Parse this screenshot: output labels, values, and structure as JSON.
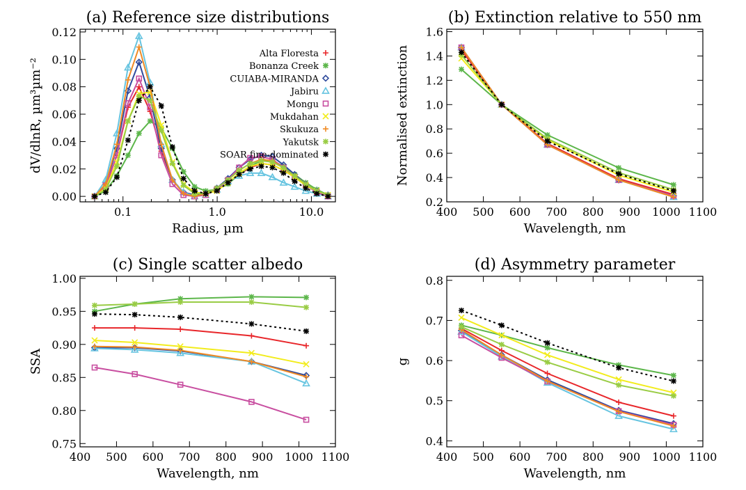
{
  "colors": {
    "Alta Floresta": "#e8262a",
    "Bonanza Creek": "#5cb64a",
    "CUIABA-MIRANDA": "#2f4a9c",
    "Jabiru": "#66c4e0",
    "Mongu": "#c84ea0",
    "Mukdahan": "#f2ec1c",
    "Skukuza": "#f08a24",
    "Yakutsk": "#99cc44",
    "SOAR fine-dominated": "#000000"
  },
  "markers": {
    "Alta Floresta": "plus",
    "Bonanza Creek": "asterisk",
    "CUIABA-MIRANDA": "diamond",
    "Jabiru": "triangle",
    "Mongu": "square",
    "Mukdahan": "x",
    "Skukuza": "plus",
    "Yakutsk": "asterisk",
    "SOAR fine-dominated": "asterisk"
  },
  "chart_data": [
    {
      "type": "line",
      "title": "(a) Reference size distributions",
      "xlabel": "Radius, µm",
      "ylabel": "dV/dlnR, µm³µm⁻²",
      "xscale": "log",
      "xlim": [
        0.035,
        18
      ],
      "ylim": [
        -0.004,
        0.122
      ],
      "xticks": [
        0.1,
        1.0,
        10.0
      ],
      "xtick_labels": [
        "0.1",
        "1.0",
        "10.0"
      ],
      "yticks": [
        0,
        0.02,
        0.04,
        0.06,
        0.08,
        0.1,
        0.12
      ],
      "ytick_labels": [
        "0.00",
        "0.02",
        "0.04",
        "0.06",
        "0.08",
        "0.10",
        "0.12"
      ],
      "legend_position": "top-right",
      "x": [
        0.05,
        0.0656,
        0.0861,
        0.113,
        0.148,
        0.194,
        0.255,
        0.335,
        0.439,
        0.576,
        0.756,
        0.992,
        1.302,
        1.708,
        2.241,
        2.94,
        3.858,
        5.062,
        6.641,
        8.713,
        11.43,
        15.0
      ],
      "series": [
        {
          "name": "Alta Floresta",
          "values": [
            0.0,
            0.007,
            0.03,
            0.065,
            0.08,
            0.062,
            0.033,
            0.012,
            0.003,
            0.001,
            0.002,
            0.005,
            0.01,
            0.016,
            0.021,
            0.024,
            0.023,
            0.019,
            0.014,
            0.009,
            0.004,
            0.001
          ]
        },
        {
          "name": "Bonanza Creek",
          "values": [
            0.0,
            0.004,
            0.015,
            0.03,
            0.046,
            0.055,
            0.05,
            0.035,
            0.018,
            0.007,
            0.004,
            0.005,
            0.009,
            0.016,
            0.022,
            0.026,
            0.026,
            0.022,
            0.016,
            0.01,
            0.005,
            0.001
          ]
        },
        {
          "name": "CUIABA-MIRANDA",
          "values": [
            0.0,
            0.009,
            0.035,
            0.077,
            0.098,
            0.072,
            0.035,
            0.012,
            0.003,
            0.001,
            0.002,
            0.006,
            0.013,
            0.021,
            0.027,
            0.03,
            0.029,
            0.023,
            0.016,
            0.009,
            0.004,
            0.001
          ]
        },
        {
          "name": "Jabiru",
          "values": [
            0.0,
            0.012,
            0.046,
            0.094,
            0.117,
            0.083,
            0.038,
            0.012,
            0.003,
            0.0,
            0.001,
            0.005,
            0.011,
            0.015,
            0.017,
            0.017,
            0.014,
            0.01,
            0.007,
            0.004,
            0.002,
            0.0
          ]
        },
        {
          "name": "Mongu",
          "values": [
            0.0,
            0.008,
            0.03,
            0.068,
            0.086,
            0.065,
            0.03,
            0.009,
            0.001,
            0.0,
            0.001,
            0.005,
            0.012,
            0.021,
            0.028,
            0.029,
            0.027,
            0.021,
            0.014,
            0.008,
            0.003,
            0.0
          ]
        },
        {
          "name": "Mukdahan",
          "values": [
            0.0,
            0.006,
            0.025,
            0.055,
            0.075,
            0.076,
            0.052,
            0.025,
            0.009,
            0.003,
            0.002,
            0.004,
            0.01,
            0.017,
            0.022,
            0.024,
            0.023,
            0.019,
            0.014,
            0.008,
            0.004,
            0.001
          ]
        },
        {
          "name": "Skukuza",
          "values": [
            0.0,
            0.009,
            0.038,
            0.085,
            0.109,
            0.08,
            0.038,
            0.012,
            0.002,
            0.0,
            0.002,
            0.006,
            0.012,
            0.019,
            0.024,
            0.027,
            0.026,
            0.021,
            0.015,
            0.009,
            0.004,
            0.001
          ]
        },
        {
          "name": "Yakutsk",
          "values": [
            0.0,
            0.005,
            0.022,
            0.055,
            0.073,
            0.07,
            0.048,
            0.024,
            0.008,
            0.002,
            0.002,
            0.006,
            0.012,
            0.019,
            0.024,
            0.026,
            0.025,
            0.021,
            0.015,
            0.009,
            0.004,
            0.001
          ]
        },
        {
          "name": "SOAR fine-dominated",
          "values": [
            0.0,
            0.003,
            0.014,
            0.041,
            0.07,
            0.08,
            0.066,
            0.036,
            0.013,
            0.004,
            0.002,
            0.004,
            0.01,
            0.016,
            0.02,
            0.022,
            0.021,
            0.017,
            0.011,
            0.006,
            0.002,
            0.0
          ]
        }
      ]
    },
    {
      "type": "line",
      "title": "(b) Extinction relative to 550 nm",
      "xlabel": "Wavelength, nm",
      "ylabel": "Normalised extinction",
      "xlim": [
        400,
        1100
      ],
      "ylim": [
        0.2,
        1.62
      ],
      "xticks": [
        400,
        500,
        600,
        700,
        800,
        900,
        1000,
        1100
      ],
      "xtick_labels": [
        "400",
        "500",
        "600",
        "700",
        "800",
        "900",
        "1000",
        "1100"
      ],
      "yticks": [
        0.2,
        0.4,
        0.6,
        0.8,
        1.0,
        1.2,
        1.4,
        1.6
      ],
      "ytick_labels": [
        "0.2",
        "0.4",
        "0.6",
        "0.8",
        "1.0",
        "1.2",
        "1.4",
        "1.6"
      ],
      "x": [
        440,
        550,
        675,
        870,
        1020
      ],
      "series": [
        {
          "name": "Alta Floresta",
          "values": [
            1.45,
            1.0,
            0.68,
            0.39,
            0.26
          ]
        },
        {
          "name": "Bonanza Creek",
          "values": [
            1.29,
            1.0,
            0.75,
            0.48,
            0.34
          ]
        },
        {
          "name": "CUIABA-MIRANDA",
          "values": [
            1.47,
            1.0,
            0.67,
            0.38,
            0.25
          ]
        },
        {
          "name": "Jabiru",
          "values": [
            1.47,
            1.0,
            0.67,
            0.38,
            0.24
          ]
        },
        {
          "name": "Mongu",
          "values": [
            1.47,
            1.0,
            0.67,
            0.38,
            0.25
          ]
        },
        {
          "name": "Mukdahan",
          "values": [
            1.38,
            1.0,
            0.71,
            0.42,
            0.28
          ]
        },
        {
          "name": "Skukuza",
          "values": [
            1.47,
            1.0,
            0.67,
            0.38,
            0.24
          ]
        },
        {
          "name": "Yakutsk",
          "values": [
            1.41,
            1.0,
            0.72,
            0.44,
            0.3
          ]
        },
        {
          "name": "SOAR fine-dominated",
          "values": [
            1.43,
            1.0,
            0.7,
            0.43,
            0.29
          ]
        }
      ]
    },
    {
      "type": "line",
      "title": "(c) Single scatter albedo",
      "xlabel": "Wavelength, nm",
      "ylabel": "SSA",
      "xlim": [
        400,
        1100
      ],
      "ylim": [
        0.745,
        1.003
      ],
      "xticks": [
        400,
        500,
        600,
        700,
        800,
        900,
        1000,
        1100
      ],
      "xtick_labels": [
        "400",
        "500",
        "600",
        "700",
        "800",
        "900",
        "1000",
        "1100"
      ],
      "yticks": [
        0.75,
        0.8,
        0.85,
        0.9,
        0.95,
        1.0
      ],
      "ytick_labels": [
        "0.75",
        "0.80",
        "0.85",
        "0.90",
        "0.95",
        "1.00"
      ],
      "x": [
        440,
        550,
        675,
        870,
        1020
      ],
      "series": [
        {
          "name": "Alta Floresta",
          "values": [
            0.925,
            0.925,
            0.923,
            0.913,
            0.898
          ]
        },
        {
          "name": "Bonanza Creek",
          "values": [
            0.95,
            0.961,
            0.969,
            0.972,
            0.971
          ]
        },
        {
          "name": "CUIABA-MIRANDA",
          "values": [
            0.895,
            0.895,
            0.89,
            0.874,
            0.853
          ]
        },
        {
          "name": "Jabiru",
          "values": [
            0.894,
            0.892,
            0.887,
            0.874,
            0.841
          ]
        },
        {
          "name": "Mongu",
          "values": [
            0.865,
            0.855,
            0.839,
            0.813,
            0.786
          ]
        },
        {
          "name": "Mukdahan",
          "values": [
            0.906,
            0.903,
            0.897,
            0.887,
            0.87
          ]
        },
        {
          "name": "Skukuza",
          "values": [
            0.897,
            0.896,
            0.891,
            0.874,
            0.851
          ]
        },
        {
          "name": "Yakutsk",
          "values": [
            0.959,
            0.961,
            0.964,
            0.964,
            0.956
          ]
        },
        {
          "name": "SOAR fine-dominated",
          "values": [
            0.946,
            0.945,
            0.941,
            0.931,
            0.92
          ]
        }
      ]
    },
    {
      "type": "line",
      "title": "(d) Asymmetry parameter",
      "xlabel": "Wavelength, nm",
      "ylabel": "g",
      "xlim": [
        400,
        1100
      ],
      "ylim": [
        0.385,
        0.81
      ],
      "xticks": [
        400,
        500,
        600,
        700,
        800,
        900,
        1000,
        1100
      ],
      "xtick_labels": [
        "400",
        "500",
        "600",
        "700",
        "800",
        "900",
        "1000",
        "1100"
      ],
      "yticks": [
        0.4,
        0.5,
        0.6,
        0.7,
        0.8
      ],
      "ytick_labels": [
        "0.4",
        "0.5",
        "0.6",
        "0.7",
        "0.8"
      ],
      "x": [
        440,
        550,
        675,
        870,
        1020
      ],
      "series": [
        {
          "name": "Alta Floresta",
          "values": [
            0.68,
            0.625,
            0.568,
            0.496,
            0.462
          ]
        },
        {
          "name": "Bonanza Creek",
          "values": [
            0.688,
            0.663,
            0.632,
            0.589,
            0.563
          ]
        },
        {
          "name": "CUIABA-MIRANDA",
          "values": [
            0.675,
            0.614,
            0.552,
            0.476,
            0.443
          ]
        },
        {
          "name": "Jabiru",
          "values": [
            0.672,
            0.61,
            0.545,
            0.462,
            0.429
          ]
        },
        {
          "name": "Mongu",
          "values": [
            0.663,
            0.607,
            0.548,
            0.474,
            0.44
          ]
        },
        {
          "name": "Mukdahan",
          "values": [
            0.707,
            0.663,
            0.614,
            0.553,
            0.52
          ]
        },
        {
          "name": "Skukuza",
          "values": [
            0.677,
            0.614,
            0.549,
            0.473,
            0.437
          ]
        },
        {
          "name": "Yakutsk",
          "values": [
            0.684,
            0.64,
            0.596,
            0.539,
            0.512
          ]
        },
        {
          "name": "SOAR fine-dominated",
          "values": [
            0.725,
            0.688,
            0.644,
            0.582,
            0.549
          ]
        }
      ]
    }
  ]
}
